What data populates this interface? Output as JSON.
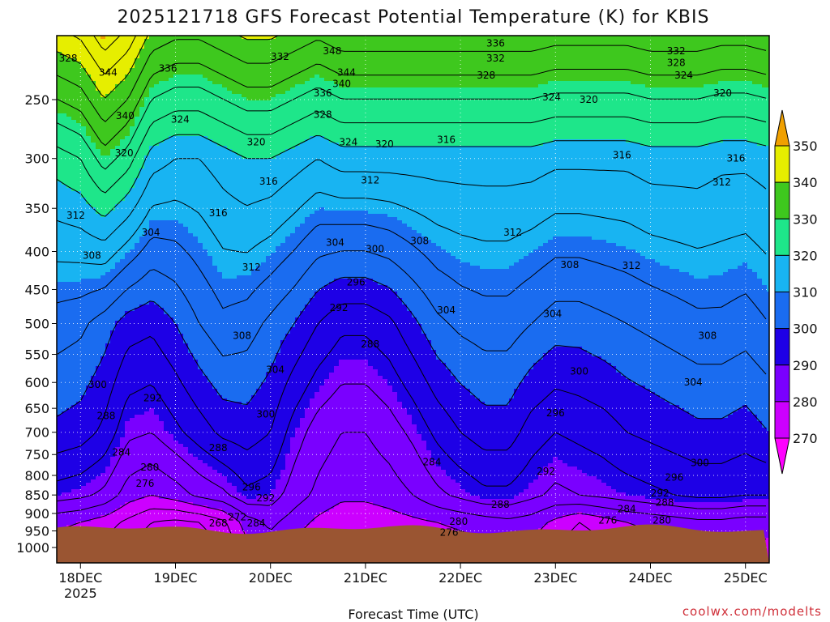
{
  "chart_data": {
    "type": "heatmap",
    "title": "2025121718 GFS Forecast Potential Temperature (K) for KBIS",
    "xlabel": "Forecast Time (UTC)",
    "ylabel": "",
    "credit": "coolwx.com/modelts",
    "x_start_day": 17.75,
    "x_end_day": 25.25,
    "y_range_hpa": [
      1000,
      200
    ],
    "x_ticks": [
      {
        "label": "18DEC",
        "day": 18,
        "sub": "2025"
      },
      {
        "label": "19DEC",
        "day": 19
      },
      {
        "label": "20DEC",
        "day": 20
      },
      {
        "label": "21DEC",
        "day": 21
      },
      {
        "label": "22DEC",
        "day": 22
      },
      {
        "label": "23DEC",
        "day": 23
      },
      {
        "label": "24DEC",
        "day": 24
      },
      {
        "label": "25DEC",
        "day": 25
      }
    ],
    "y_ticks": [
      250,
      300,
      350,
      400,
      450,
      500,
      550,
      600,
      650,
      700,
      750,
      800,
      850,
      900,
      950,
      1000
    ],
    "colorbar": {
      "levels": [
        270,
        280,
        290,
        300,
        310,
        320,
        330,
        340,
        350
      ],
      "colors": [
        "#ff00ff",
        "#cc00ff",
        "#7a00ff",
        "#1e00e6",
        "#1a6cf0",
        "#18b4f2",
        "#1ee68a",
        "#3ec81e",
        "#e6ee00",
        "#f0a000"
      ]
    },
    "theta_profiles": [
      {
        "day": 17.75,
        "p300": 322,
        "p500": 306,
        "p700": 299,
        "p850": 290,
        "p925": 281
      },
      {
        "day": 18.0,
        "p300": 324,
        "p500": 305,
        "p700": 298,
        "p850": 289,
        "p925": 280
      },
      {
        "day": 18.25,
        "p300": 330,
        "p500": 302,
        "p700": 295,
        "p850": 287,
        "p925": 278
      },
      {
        "day": 18.5,
        "p300": 326,
        "p500": 298,
        "p700": 289,
        "p850": 282,
        "p925": 275
      },
      {
        "day": 18.75,
        "p300": 318,
        "p500": 297,
        "p700": 288,
        "p850": 280,
        "p925": 272
      },
      {
        "day": 19.0,
        "p300": 316,
        "p500": 300,
        "p700": 291,
        "p850": 282,
        "p925": 271
      },
      {
        "day": 19.25,
        "p300": 316,
        "p500": 304,
        "p700": 294,
        "p850": 285,
        "p925": 272
      },
      {
        "day": 19.5,
        "p300": 318,
        "p500": 307,
        "p700": 297,
        "p850": 287,
        "p925": 275
      },
      {
        "day": 19.75,
        "p300": 320,
        "p500": 306,
        "p700": 298,
        "p850": 291,
        "p925": 282
      },
      {
        "day": 20.0,
        "p300": 320,
        "p500": 303,
        "p700": 296,
        "p850": 290,
        "p925": 285
      },
      {
        "day": 20.25,
        "p300": 318,
        "p500": 300,
        "p700": 290,
        "p850": 286,
        "p925": 282
      },
      {
        "day": 20.5,
        "p300": 316,
        "p500": 296,
        "p700": 286,
        "p850": 283,
        "p925": 279
      },
      {
        "day": 20.75,
        "p300": 318,
        "p500": 293,
        "p700": 284,
        "p850": 281,
        "p925": 277
      },
      {
        "day": 21.0,
        "p300": 318,
        "p500": 293,
        "p700": 284,
        "p850": 281,
        "p925": 277
      },
      {
        "day": 21.25,
        "p300": 318,
        "p500": 295,
        "p700": 286,
        "p850": 282,
        "p925": 278
      },
      {
        "day": 21.5,
        "p300": 318,
        "p500": 299,
        "p700": 289,
        "p850": 284,
        "p925": 279
      },
      {
        "day": 21.75,
        "p300": 318,
        "p500": 303,
        "p700": 293,
        "p850": 287,
        "p925": 280
      },
      {
        "day": 22.0,
        "p300": 318,
        "p500": 305,
        "p700": 296,
        "p850": 289,
        "p925": 281
      },
      {
        "day": 22.25,
        "p300": 318,
        "p500": 306,
        "p700": 298,
        "p850": 291,
        "p925": 282
      },
      {
        "day": 22.5,
        "p300": 318,
        "p500": 306,
        "p700": 298,
        "p850": 291,
        "p925": 283
      },
      {
        "day": 22.75,
        "p300": 318,
        "p500": 304,
        "p700": 294,
        "p850": 289,
        "p925": 282
      },
      {
        "day": 23.0,
        "p300": 317,
        "p500": 302,
        "p700": 292,
        "p850": 287,
        "p925": 279
      },
      {
        "day": 23.25,
        "p300": 317,
        "p500": 302,
        "p700": 293,
        "p850": 288,
        "p925": 276
      },
      {
        "day": 23.5,
        "p300": 317,
        "p500": 303,
        "p700": 294,
        "p850": 289,
        "p925": 278
      },
      {
        "day": 23.75,
        "p300": 317,
        "p500": 304,
        "p700": 296,
        "p850": 290,
        "p925": 280
      },
      {
        "day": 24.0,
        "p300": 318,
        "p500": 305,
        "p700": 297,
        "p850": 291,
        "p925": 281
      },
      {
        "day": 24.25,
        "p300": 318,
        "p500": 306,
        "p700": 298,
        "p850": 292,
        "p925": 282
      },
      {
        "day": 24.5,
        "p300": 318,
        "p500": 307,
        "p700": 299,
        "p850": 293,
        "p925": 283
      },
      {
        "day": 24.75,
        "p300": 317,
        "p500": 307,
        "p700": 299,
        "p850": 293,
        "p925": 283
      },
      {
        "day": 25.0,
        "p300": 317,
        "p500": 306,
        "p700": 298,
        "p850": 292,
        "p925": 282
      },
      {
        "day": 25.25,
        "p300": 318,
        "p500": 308,
        "p700": 300,
        "p850": 292,
        "p925": 282
      }
    ],
    "contour_labels": [
      {
        "text": "328",
        "day": 17.87,
        "p": 220
      },
      {
        "text": "344",
        "day": 18.29,
        "p": 230
      },
      {
        "text": "340",
        "day": 18.47,
        "p": 263
      },
      {
        "text": "336",
        "day": 18.92,
        "p": 227
      },
      {
        "text": "332",
        "day": 20.1,
        "p": 219
      },
      {
        "text": "348",
        "day": 20.65,
        "p": 215
      },
      {
        "text": "344",
        "day": 20.8,
        "p": 230
      },
      {
        "text": "340",
        "day": 20.75,
        "p": 238
      },
      {
        "text": "336",
        "day": 20.55,
        "p": 245
      },
      {
        "text": "328",
        "day": 20.55,
        "p": 262
      },
      {
        "text": "324",
        "day": 19.05,
        "p": 266
      },
      {
        "text": "336",
        "day": 22.37,
        "p": 210
      },
      {
        "text": "332",
        "day": 22.37,
        "p": 220
      },
      {
        "text": "328",
        "day": 22.27,
        "p": 232
      },
      {
        "text": "324",
        "day": 22.96,
        "p": 248
      },
      {
        "text": "320",
        "day": 23.35,
        "p": 250
      },
      {
        "text": "332",
        "day": 24.27,
        "p": 215
      },
      {
        "text": "328",
        "day": 24.27,
        "p": 223
      },
      {
        "text": "324",
        "day": 24.35,
        "p": 232
      },
      {
        "text": "320",
        "day": 24.76,
        "p": 245
      },
      {
        "text": "316",
        "day": 21.85,
        "p": 283
      },
      {
        "text": "316",
        "day": 23.7,
        "p": 297
      },
      {
        "text": "316",
        "day": 24.9,
        "p": 300
      },
      {
        "text": "312",
        "day": 24.75,
        "p": 323
      },
      {
        "text": "320",
        "day": 18.46,
        "p": 295
      },
      {
        "text": "320",
        "day": 19.85,
        "p": 285
      },
      {
        "text": "324",
        "day": 20.82,
        "p": 285
      },
      {
        "text": "320",
        "day": 21.2,
        "p": 287
      },
      {
        "text": "316",
        "day": 19.98,
        "p": 322
      },
      {
        "text": "312",
        "day": 21.05,
        "p": 321
      },
      {
        "text": "316",
        "day": 19.45,
        "p": 355
      },
      {
        "text": "312",
        "day": 17.95,
        "p": 358
      },
      {
        "text": "304",
        "day": 18.74,
        "p": 377
      },
      {
        "text": "308",
        "day": 18.12,
        "p": 405
      },
      {
        "text": "312",
        "day": 19.8,
        "p": 420
      },
      {
        "text": "304",
        "day": 20.68,
        "p": 389
      },
      {
        "text": "308",
        "day": 21.57,
        "p": 387
      },
      {
        "text": "312",
        "day": 22.55,
        "p": 377
      },
      {
        "text": "308",
        "day": 23.15,
        "p": 417
      },
      {
        "text": "312",
        "day": 23.8,
        "p": 418
      },
      {
        "text": "300",
        "day": 21.1,
        "p": 397
      },
      {
        "text": "296",
        "day": 20.9,
        "p": 440
      },
      {
        "text": "292",
        "day": 20.72,
        "p": 476
      },
      {
        "text": "288",
        "day": 21.05,
        "p": 533
      },
      {
        "text": "304",
        "day": 21.85,
        "p": 480
      },
      {
        "text": "304",
        "day": 22.97,
        "p": 485
      },
      {
        "text": "308",
        "day": 19.7,
        "p": 519
      },
      {
        "text": "304",
        "day": 20.05,
        "p": 577
      },
      {
        "text": "300",
        "day": 18.18,
        "p": 604
      },
      {
        "text": "300",
        "day": 19.95,
        "p": 662
      },
      {
        "text": "308",
        "day": 24.6,
        "p": 519
      },
      {
        "text": "304",
        "day": 24.45,
        "p": 600
      },
      {
        "text": "300",
        "day": 23.25,
        "p": 580
      },
      {
        "text": "296",
        "day": 23.0,
        "p": 660
      },
      {
        "text": "292",
        "day": 18.76,
        "p": 630
      },
      {
        "text": "288",
        "day": 18.27,
        "p": 665
      },
      {
        "text": "284",
        "day": 18.43,
        "p": 745
      },
      {
        "text": "280",
        "day": 18.73,
        "p": 780
      },
      {
        "text": "276",
        "day": 18.68,
        "p": 820
      },
      {
        "text": "288",
        "day": 19.45,
        "p": 735
      },
      {
        "text": "296",
        "day": 19.8,
        "p": 830
      },
      {
        "text": "292",
        "day": 19.95,
        "p": 858
      },
      {
        "text": "284",
        "day": 21.7,
        "p": 768
      },
      {
        "text": "268",
        "day": 19.45,
        "p": 928
      },
      {
        "text": "272",
        "day": 19.65,
        "p": 910
      },
      {
        "text": "284",
        "day": 19.85,
        "p": 927
      },
      {
        "text": "288",
        "day": 22.42,
        "p": 876
      },
      {
        "text": "280",
        "day": 21.98,
        "p": 923
      },
      {
        "text": "276",
        "day": 21.88,
        "p": 955
      },
      {
        "text": "292",
        "day": 22.9,
        "p": 790
      },
      {
        "text": "276",
        "day": 23.55,
        "p": 920
      },
      {
        "text": "284",
        "day": 23.75,
        "p": 888
      },
      {
        "text": "280",
        "day": 24.12,
        "p": 920
      },
      {
        "text": "288",
        "day": 24.15,
        "p": 870
      },
      {
        "text": "292",
        "day": 24.1,
        "p": 845
      },
      {
        "text": "296",
        "day": 24.25,
        "p": 805
      },
      {
        "text": "300",
        "day": 24.52,
        "p": 770
      }
    ]
  }
}
